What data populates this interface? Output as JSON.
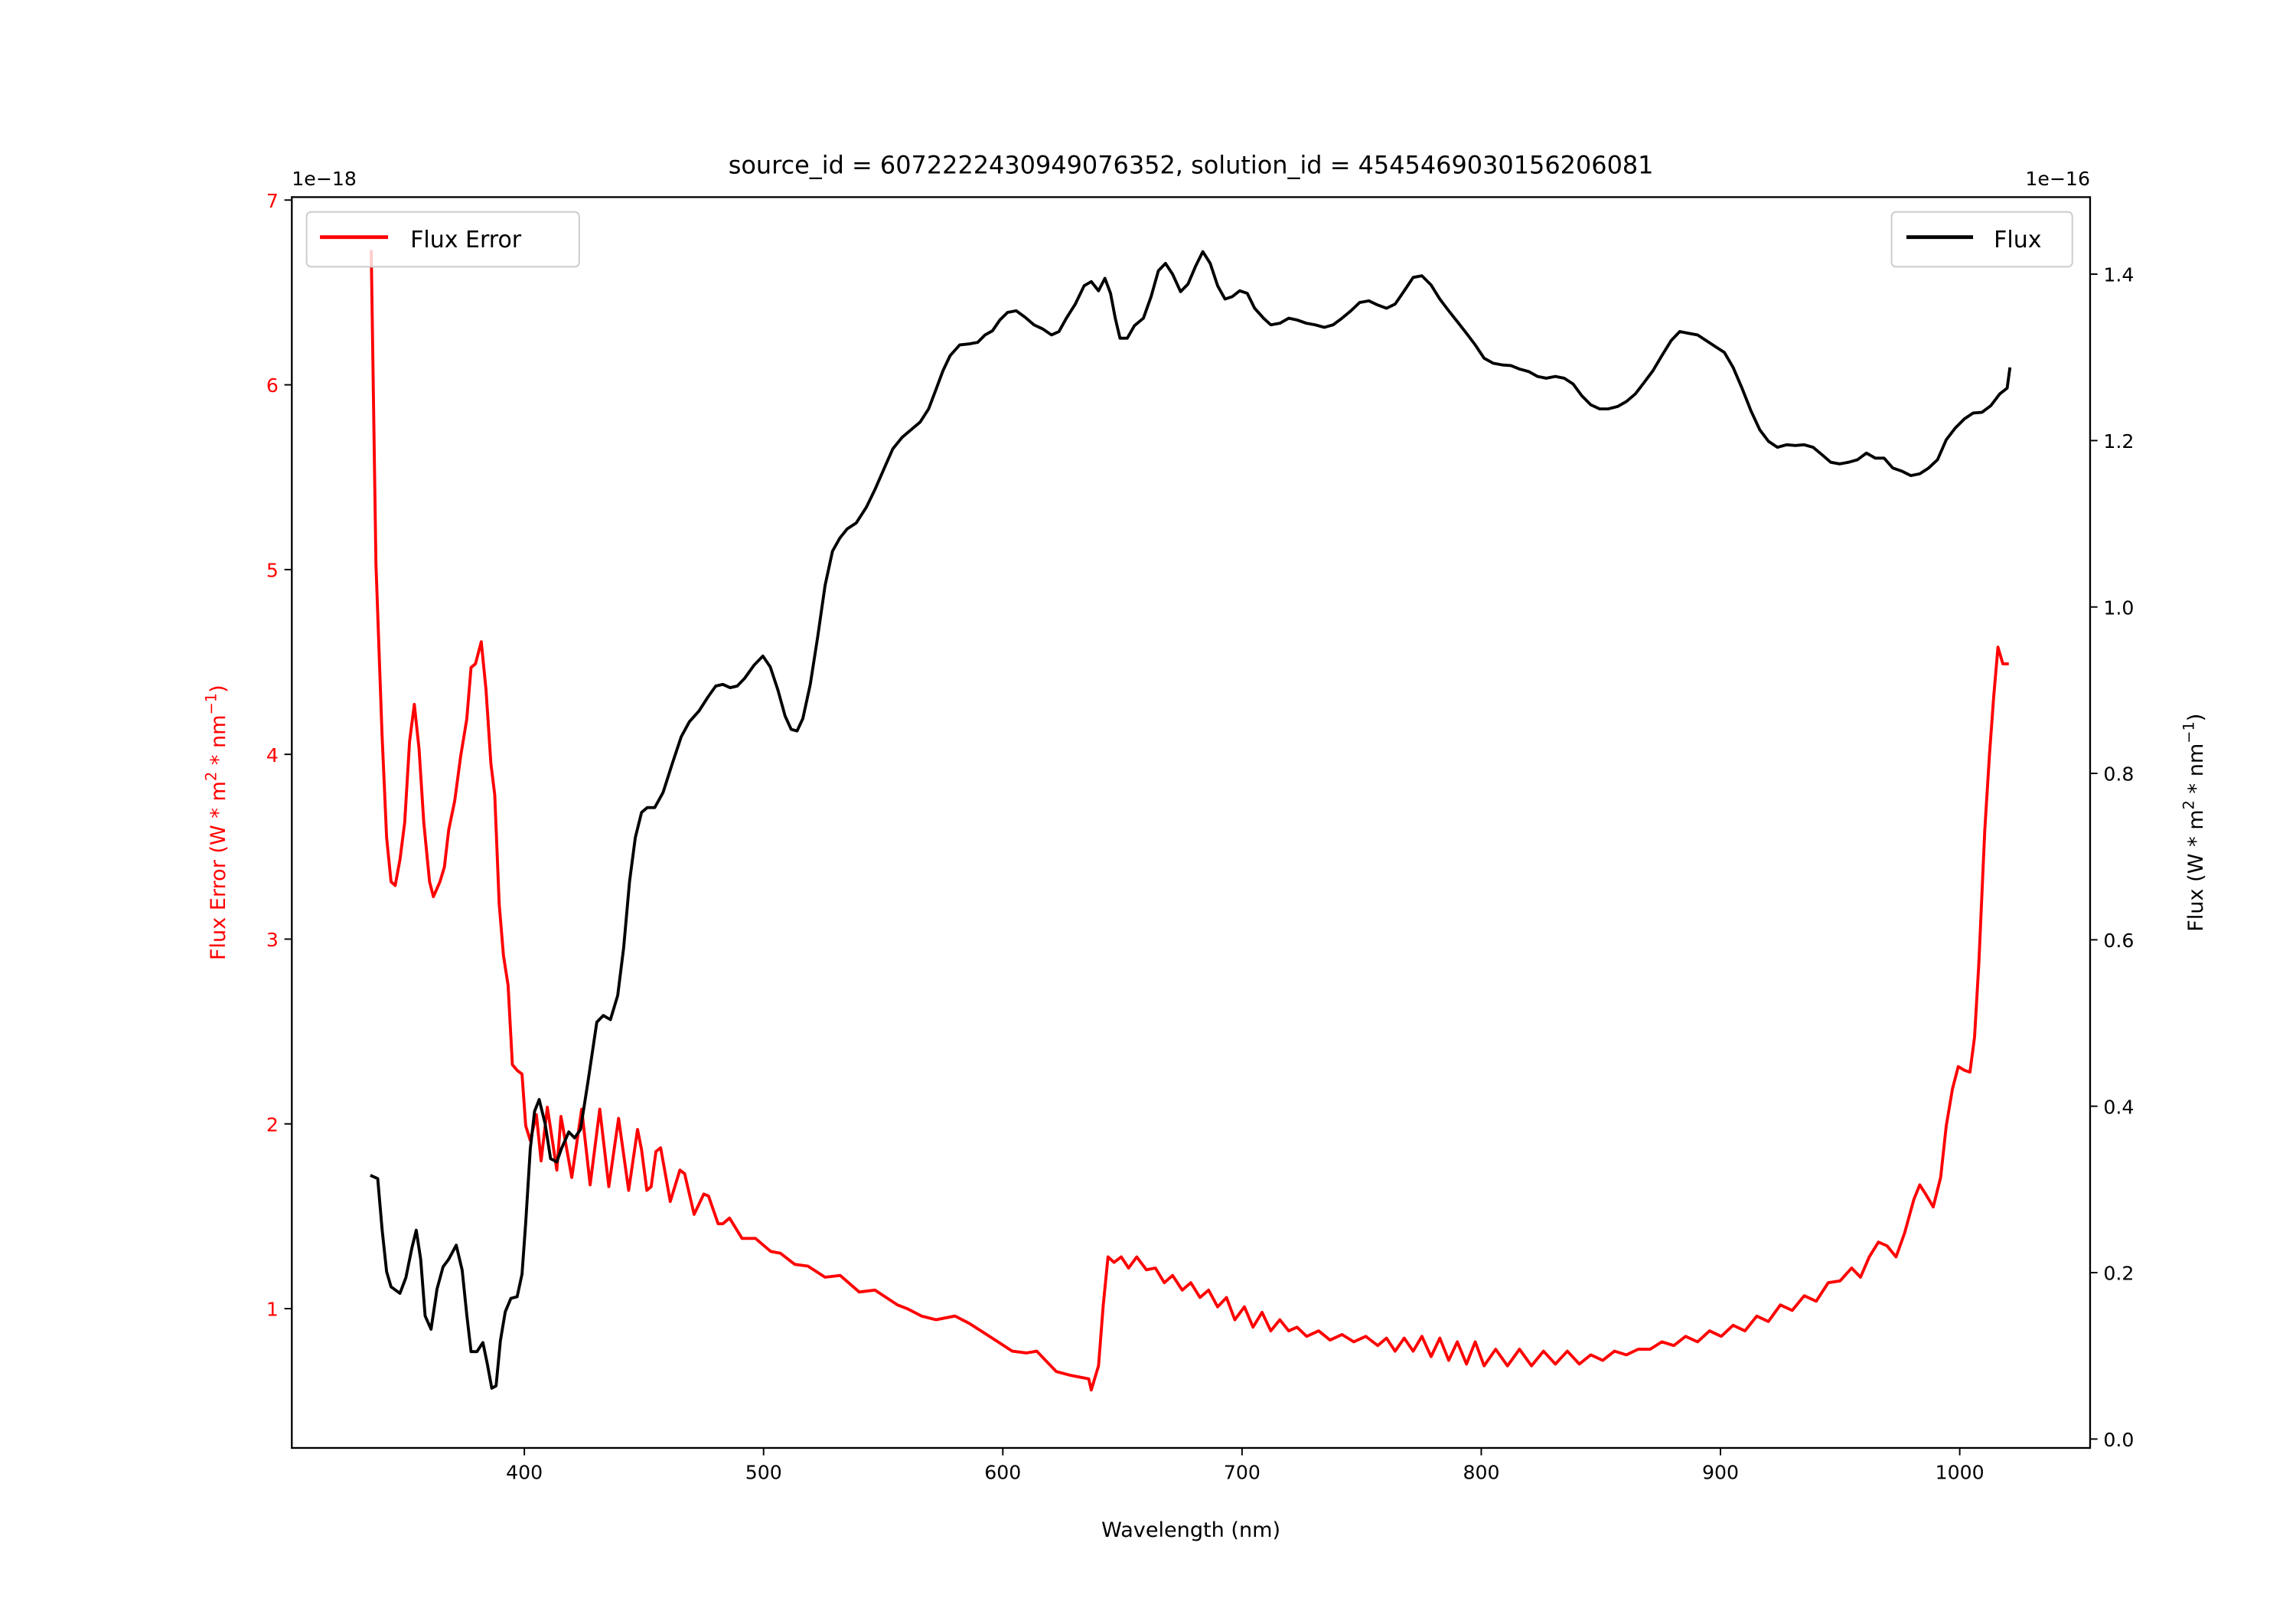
{
  "chart_data": {
    "type": "line",
    "title": "source_id = 6072222430949076352, solution_id = 4545469030156206081",
    "xlabel": "Wavelength (nm)",
    "xlim": [
      302.8,
      1054.5
    ],
    "xticks": [
      400,
      500,
      600,
      700,
      800,
      900,
      1000
    ],
    "grid": false,
    "axes": {
      "left": {
        "label_prefix": "Flux Error (W * m",
        "label_sup1": "2",
        "label_mid": " * nm",
        "label_sup2": "−1",
        "label_suffix": ")",
        "offset_text": "1e−18",
        "ylim": [
          0.246,
          7.016
        ],
        "yticks": [
          1,
          2,
          3,
          4,
          5,
          6,
          7
        ],
        "color": "#ff0000"
      },
      "right": {
        "label_prefix": "Flux (W * m",
        "label_sup1": "2",
        "label_mid": " * nm",
        "label_sup2": "−1",
        "label_suffix": ")",
        "offset_text": "1e−16",
        "ylim": [
          -0.0107,
          1.4926
        ],
        "yticks": [
          "0.0",
          "0.2",
          "0.4",
          "0.6",
          "0.8",
          "1.0",
          "1.2",
          "1.4"
        ],
        "color": "#000000"
      }
    },
    "series": [
      {
        "name": "Flux Error",
        "axis": "left",
        "legend_position": "upper-left",
        "color": "#ff0000",
        "x": [
          336,
          338,
          340.5,
          342.4,
          344.3,
          346,
          348,
          350,
          352,
          354,
          356,
          358,
          360.4,
          362,
          364.7,
          366.6,
          368.4,
          370.9,
          373.4,
          375.9,
          377.7,
          379.6,
          382,
          384,
          386,
          387.6,
          389.5,
          391.3,
          393.2,
          395,
          397,
          399,
          400.6,
          402.5,
          405,
          407,
          409.6,
          413.6,
          415.3,
          419.8,
          424,
          427.5,
          431.5,
          435.3,
          439.4,
          443.6,
          447.3,
          449,
          451.2,
          453,
          455,
          457,
          461,
          465,
          467,
          471,
          475,
          477,
          481,
          483,
          485.8,
          491,
          496.6,
          503,
          507,
          513,
          518.5,
          525.7,
          532,
          540,
          546.6,
          556,
          560,
          566,
          572,
          580,
          586,
          592,
          598,
          604,
          610,
          614.2,
          622.3,
          628,
          635.9,
          637,
          640,
          642,
          644,
          646.5,
          649.5,
          652.6,
          656,
          660,
          663.8,
          667.5,
          671,
          675,
          678.6,
          682.4,
          686,
          689.8,
          693.5,
          697,
          701,
          704.6,
          708.4,
          712,
          715.8,
          719.5,
          723,
          727,
          732,
          736.8,
          741.8,
          746.7,
          751.7,
          756.7,
          760.4,
          764,
          767.8,
          771.5,
          775.2,
          779,
          782.7,
          786.4,
          790,
          793.8,
          797.5,
          801.2,
          806,
          811,
          816,
          821,
          826,
          831,
          836,
          841,
          845.8,
          850.8,
          855.7,
          860.7,
          865.6,
          870.6,
          875.5,
          880.5,
          885.4,
          890.4,
          895.4,
          900.3,
          905.3,
          910.2,
          915.2,
          920,
          925,
          930,
          935,
          940,
          945,
          950,
          954.8,
          958.5,
          962.2,
          966,
          969.6,
          973.4,
          977,
          980.8,
          983.3,
          985.8,
          988.9,
          992,
          994.4,
          997,
          999.4,
          1002,
          1004.3,
          1006.2,
          1008,
          1010.5,
          1012.4,
          1014.2,
          1016,
          1018,
          1020.5
        ],
        "y": [
          6.73,
          5.03,
          4.11,
          3.55,
          3.31,
          3.29,
          3.43,
          3.63,
          4.07,
          4.27,
          4.03,
          3.63,
          3.31,
          3.23,
          3.31,
          3.39,
          3.59,
          3.75,
          3.99,
          4.19,
          4.47,
          4.49,
          4.61,
          4.35,
          3.95,
          3.78,
          3.19,
          2.91,
          2.75,
          2.32,
          2.29,
          2.27,
          1.99,
          1.91,
          2.05,
          1.8,
          2.09,
          1.75,
          2.04,
          1.71,
          2.08,
          1.67,
          2.08,
          1.66,
          2.03,
          1.64,
          1.97,
          1.86,
          1.64,
          1.66,
          1.85,
          1.87,
          1.58,
          1.75,
          1.73,
          1.51,
          1.62,
          1.61,
          1.46,
          1.46,
          1.49,
          1.38,
          1.38,
          1.31,
          1.3,
          1.24,
          1.23,
          1.17,
          1.18,
          1.09,
          1.1,
          1.02,
          1.0,
          0.96,
          0.94,
          0.96,
          0.92,
          0.87,
          0.82,
          0.77,
          0.76,
          0.77,
          0.66,
          0.64,
          0.62,
          0.56,
          0.69,
          1.02,
          1.28,
          1.25,
          1.28,
          1.22,
          1.28,
          1.21,
          1.22,
          1.14,
          1.18,
          1.1,
          1.14,
          1.06,
          1.1,
          1.01,
          1.06,
          0.94,
          1.01,
          0.9,
          0.98,
          0.88,
          0.94,
          0.88,
          0.9,
          0.85,
          0.88,
          0.83,
          0.86,
          0.82,
          0.85,
          0.8,
          0.84,
          0.77,
          0.84,
          0.77,
          0.85,
          0.74,
          0.84,
          0.72,
          0.82,
          0.7,
          0.82,
          0.69,
          0.78,
          0.69,
          0.78,
          0.69,
          0.77,
          0.7,
          0.77,
          0.7,
          0.75,
          0.72,
          0.77,
          0.75,
          0.78,
          0.78,
          0.82,
          0.8,
          0.85,
          0.82,
          0.88,
          0.85,
          0.91,
          0.88,
          0.96,
          0.93,
          1.02,
          0.99,
          1.07,
          1.04,
          1.14,
          1.15,
          1.22,
          1.17,
          1.28,
          1.36,
          1.34,
          1.28,
          1.41,
          1.59,
          1.67,
          1.62,
          1.55,
          1.71,
          1.99,
          2.19,
          2.31,
          2.29,
          2.28,
          2.47,
          2.87,
          3.59,
          3.99,
          4.31,
          4.58,
          4.49,
          4.49
        ]
      },
      {
        "name": "Flux",
        "axis": "right",
        "legend_position": "upper-right",
        "color": "#000000",
        "x": [
          335.6,
          338.7,
          340.6,
          342.4,
          344.3,
          348,
          350.5,
          353,
          354.8,
          356.7,
          358.5,
          361,
          363.5,
          366,
          368.4,
          371.5,
          374,
          376,
          377.7,
          380.2,
          382.7,
          384.5,
          386.4,
          388.2,
          390,
          392,
          394.4,
          397,
          399,
          400.6,
          402.5,
          404.3,
          406.2,
          408.7,
          411,
          413.6,
          415.5,
          418.6,
          421,
          423.5,
          426.6,
          430.3,
          433,
          436,
          439,
          441.5,
          444,
          446.4,
          449,
          451.4,
          454.5,
          458,
          461.9,
          465.6,
          469,
          473,
          476.8,
          480,
          483,
          486,
          489,
          492,
          496,
          499.7,
          502.8,
          506,
          509,
          511.5,
          514,
          516.4,
          519.5,
          522.6,
          525.7,
          528.8,
          531.9,
          535,
          538.7,
          543,
          546.7,
          550.5,
          554,
          558,
          561.6,
          565.4,
          569,
          572,
          575,
          578,
          582,
          585.8,
          589.5,
          592.6,
          595.7,
          598.8,
          602,
          605.6,
          609.4,
          613,
          616.7,
          620.4,
          623.5,
          626.6,
          630.3,
          634,
          637,
          640,
          642.7,
          645,
          647,
          649,
          652,
          655,
          658.8,
          662,
          665,
          668,
          671,
          674.3,
          677.4,
          680.5,
          683.6,
          686.7,
          689.8,
          692.9,
          696,
          699,
          702.2,
          705.3,
          709,
          712,
          715.8,
          719.5,
          723,
          726.9,
          730.6,
          734.4,
          738,
          741.8,
          745.5,
          749.2,
          753,
          756.7,
          760.4,
          764,
          767.8,
          771.5,
          775.2,
          779,
          782.7,
          786.4,
          790,
          793.8,
          797.5,
          801.2,
          805,
          808.7,
          812.4,
          816,
          819.8,
          823.5,
          827.2,
          831,
          834.7,
          838.4,
          842,
          845.8,
          849.5,
          853,
          857,
          860.7,
          864.4,
          868.1,
          871.8,
          875.5,
          879.3,
          883,
          886.7,
          890.4,
          894.1,
          897.8,
          901.6,
          905.3,
          909,
          912.7,
          916.4,
          920.1,
          923.8,
          927.6,
          931.3,
          935,
          938.7,
          942.4,
          946.1,
          949.8,
          953.6,
          957.3,
          961,
          964.7,
          968.4,
          972,
          975.9,
          979.6,
          983.3,
          987,
          990.7,
          994.4,
          998.1,
          1001.9,
          1005.6,
          1009.3,
          1013,
          1016.7,
          1019.8,
          1021
        ],
        "y": [
          0.317,
          0.313,
          0.251,
          0.201,
          0.183,
          0.175,
          0.194,
          0.23,
          0.251,
          0.216,
          0.148,
          0.132,
          0.18,
          0.207,
          0.216,
          0.233,
          0.203,
          0.148,
          0.105,
          0.105,
          0.116,
          0.091,
          0.061,
          0.064,
          0.118,
          0.153,
          0.169,
          0.171,
          0.198,
          0.26,
          0.349,
          0.394,
          0.408,
          0.379,
          0.337,
          0.333,
          0.349,
          0.369,
          0.362,
          0.372,
          0.429,
          0.501,
          0.509,
          0.504,
          0.533,
          0.59,
          0.67,
          0.723,
          0.753,
          0.759,
          0.759,
          0.777,
          0.812,
          0.844,
          0.862,
          0.875,
          0.892,
          0.905,
          0.907,
          0.903,
          0.905,
          0.914,
          0.93,
          0.941,
          0.928,
          0.9,
          0.869,
          0.853,
          0.851,
          0.866,
          0.907,
          0.964,
          1.026,
          1.067,
          1.083,
          1.094,
          1.101,
          1.12,
          1.142,
          1.167,
          1.19,
          1.204,
          1.213,
          1.222,
          1.238,
          1.261,
          1.284,
          1.302,
          1.315,
          1.316,
          1.318,
          1.327,
          1.332,
          1.345,
          1.354,
          1.356,
          1.348,
          1.339,
          1.334,
          1.327,
          1.331,
          1.347,
          1.364,
          1.386,
          1.391,
          1.38,
          1.395,
          1.377,
          1.347,
          1.323,
          1.323,
          1.338,
          1.347,
          1.373,
          1.404,
          1.413,
          1.4,
          1.379,
          1.388,
          1.409,
          1.427,
          1.413,
          1.386,
          1.37,
          1.373,
          1.38,
          1.377,
          1.359,
          1.347,
          1.339,
          1.341,
          1.347,
          1.345,
          1.341,
          1.339,
          1.336,
          1.339,
          1.347,
          1.356,
          1.366,
          1.368,
          1.363,
          1.359,
          1.364,
          1.38,
          1.396,
          1.398,
          1.387,
          1.37,
          1.356,
          1.343,
          1.329,
          1.315,
          1.299,
          1.293,
          1.291,
          1.29,
          1.286,
          1.283,
          1.277,
          1.275,
          1.277,
          1.275,
          1.268,
          1.254,
          1.243,
          1.238,
          1.238,
          1.241,
          1.247,
          1.256,
          1.27,
          1.284,
          1.302,
          1.32,
          1.331,
          1.329,
          1.327,
          1.32,
          1.313,
          1.306,
          1.288,
          1.263,
          1.236,
          1.213,
          1.199,
          1.192,
          1.195,
          1.194,
          1.195,
          1.192,
          1.183,
          1.174,
          1.172,
          1.174,
          1.177,
          1.185,
          1.179,
          1.179,
          1.167,
          1.163,
          1.158,
          1.16,
          1.167,
          1.177,
          1.201,
          1.215,
          1.226,
          1.233,
          1.234,
          1.242,
          1.256,
          1.263,
          1.288
        ]
      }
    ]
  }
}
